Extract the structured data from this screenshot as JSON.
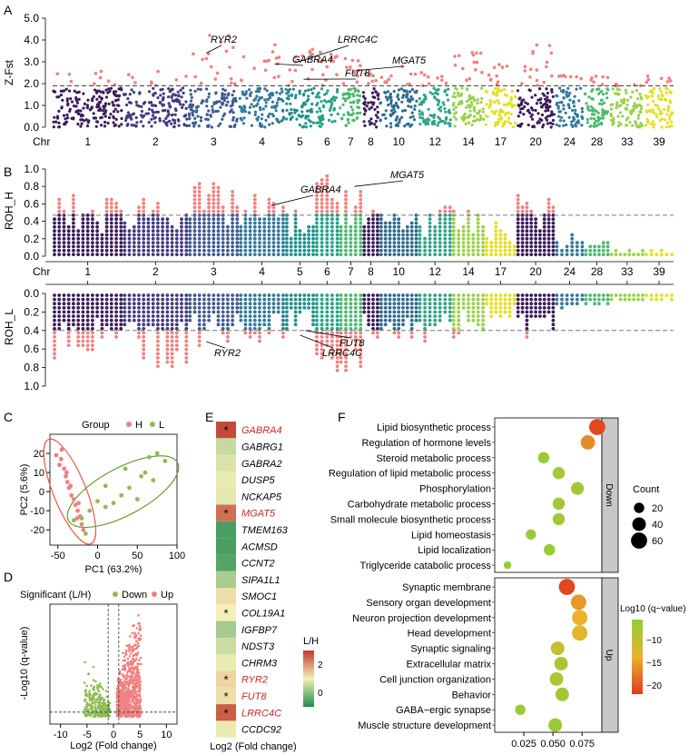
{
  "panel_labels": [
    "A",
    "B",
    "C",
    "D",
    "E",
    "F"
  ],
  "chart_data": [
    {
      "panel": "A",
      "type": "scatter",
      "title": "",
      "ylabel": "Z-Fst",
      "xlabel": "Chr",
      "ylim": [
        0,
        5.0
      ],
      "yticks": [
        "0.0",
        "1.0",
        "2.0",
        "3.0",
        "4.0",
        "5.0"
      ],
      "threshold": 1.9,
      "chromosome_labels": [
        "1",
        "2",
        "3",
        "4",
        "5",
        "6",
        "7",
        "8",
        "10",
        "12",
        "14",
        "17",
        "20",
        "24",
        "28",
        "33",
        "39"
      ],
      "chromosome_peak_values": [
        2.8,
        2.7,
        4.3,
        3.8,
        3.6,
        3.5,
        3.2,
        2.5,
        3.0,
        2.7,
        3.5,
        2.9,
        4.1,
        2.4,
        2.4,
        2.0,
        2.4
      ],
      "gene_annotations": [
        {
          "gene": "RYR2",
          "value": 3.4
        },
        {
          "gene": "GABRA4",
          "value": 2.9
        },
        {
          "gene": "LRRC4C",
          "value": 3.0
        },
        {
          "gene": "FUT8",
          "value": 2.2
        },
        {
          "gene": "MGAT5",
          "value": 2.6
        }
      ]
    },
    {
      "panel": "B-top",
      "type": "scatter",
      "ylabel": "ROH_H",
      "xlabel": "Chr",
      "ylim": [
        0,
        1.0
      ],
      "yticks": [
        "0.0",
        "0.2",
        "0.4",
        "0.6",
        "0.8",
        "1.0"
      ],
      "threshold": 0.47,
      "chromosome_labels": [
        "1",
        "2",
        "3",
        "4",
        "5",
        "6",
        "7",
        "8",
        "10",
        "12",
        "14",
        "17",
        "20",
        "24",
        "28",
        "33",
        "39"
      ],
      "chromosome_peak_values": [
        0.72,
        0.8,
        0.86,
        0.72,
        0.55,
        0.98,
        0.95,
        0.58,
        0.62,
        0.6,
        0.55,
        0.4,
        0.75,
        0.25,
        0.2,
        0.08,
        0.1
      ],
      "gene_annotations": [
        {
          "gene": "GABRA4",
          "value": 0.58
        },
        {
          "gene": "MGAT5",
          "value": 0.8
        }
      ]
    },
    {
      "panel": "B-bottom",
      "type": "scatter",
      "ylabel": "ROH_L",
      "ylim": [
        0,
        1.0
      ],
      "yticks": [
        "0.0",
        "0.2",
        "0.4",
        "0.6",
        "0.8",
        "1.0"
      ],
      "threshold": 0.4,
      "chromosome_peak_values": [
        0.72,
        0.82,
        0.58,
        0.55,
        0.42,
        0.95,
        0.86,
        0.62,
        0.58,
        0.56,
        0.5,
        0.3,
        0.55,
        0.2,
        0.15,
        0.1,
        0.1
      ],
      "gene_annotations": [
        {
          "gene": "RYR2",
          "value": 0.52
        },
        {
          "gene": "LRRC4C",
          "value": 0.45
        },
        {
          "gene": "FUT8",
          "value": 0.4
        }
      ]
    },
    {
      "panel": "C",
      "type": "scatter",
      "legend_title": "Group",
      "series": [
        {
          "name": "H",
          "color": "#f08080",
          "points": [
            [
              -52,
              19
            ],
            [
              -48,
              14
            ],
            [
              -45,
              22
            ],
            [
              -42,
              12
            ],
            [
              -40,
              8
            ],
            [
              -38,
              5
            ],
            [
              -36,
              2
            ],
            [
              -34,
              3
            ],
            [
              -33,
              -2
            ],
            [
              -30,
              -4
            ],
            [
              -28,
              -7
            ],
            [
              -25,
              -10
            ],
            [
              -22,
              -13
            ],
            [
              -20,
              -17
            ],
            [
              -46,
              17
            ],
            [
              -39,
              10
            ],
            [
              -26,
              -14
            ],
            [
              -18,
              -20
            ],
            [
              -24,
              -6
            ]
          ]
        },
        {
          "name": "L",
          "color": "#8fbc55",
          "points": [
            [
              -30,
              -15
            ],
            [
              -20,
              -14
            ],
            [
              -10,
              -10
            ],
            [
              0,
              -5
            ],
            [
              10,
              -8
            ],
            [
              20,
              -6
            ],
            [
              30,
              -2
            ],
            [
              40,
              2
            ],
            [
              50,
              -4
            ],
            [
              55,
              8
            ],
            [
              60,
              10
            ],
            [
              65,
              18
            ],
            [
              75,
              20
            ],
            [
              85,
              16
            ],
            [
              -15,
              -22
            ],
            [
              10,
              3
            ],
            [
              35,
              12
            ],
            [
              70,
              6
            ]
          ]
        }
      ],
      "xlabel": "PC1 (63.2%)",
      "ylabel": "PC2 (5.6%)",
      "xlim": [
        -60,
        100
      ],
      "ylim": [
        -28,
        30
      ],
      "xticks": [
        -50,
        0,
        50,
        100
      ],
      "yticks": [
        20,
        10,
        0,
        -10,
        -20
      ]
    },
    {
      "panel": "D",
      "type": "scatter",
      "legend_title": "Significant (L/H)",
      "series": [
        {
          "name": "Down",
          "color": "#8fbc55",
          "x_range": [
            -5.5,
            -0.6
          ],
          "y_max": 6
        },
        {
          "name": "Up",
          "color": "#f08080",
          "x_range": [
            0.6,
            5.2
          ],
          "y_max": 12
        }
      ],
      "xlabel": "Log2 (Fold change)",
      "ylabel": "-Log10 (q-value)",
      "xlim": [
        -12,
        12
      ],
      "ylim": [
        0,
        13
      ],
      "xticks": [
        -10,
        -5,
        0,
        5,
        10
      ]
    },
    {
      "panel": "E",
      "type": "heatmap",
      "genes": [
        "GABRA4",
        "GABRG1",
        "GABRA2",
        "DUSP5",
        "NCKAP5",
        "MGAT5",
        "TMEM163",
        "ACMSD",
        "CCNT2",
        "SIPA1L1",
        "SMOC1",
        "COL19A1",
        "IGFBP7",
        "NDST3",
        "CHRM3",
        "RYR2",
        "FUT8",
        "LRRC4C",
        "CCDC92"
      ],
      "values": [
        2.8,
        0.55,
        0.75,
        0.9,
        0.85,
        2.4,
        -0.6,
        -0.6,
        -0.5,
        0.3,
        1.2,
        1.0,
        0.25,
        0.6,
        0.9,
        1.3,
        1.2,
        2.6,
        0.9
      ],
      "highlighted": [
        true,
        false,
        false,
        false,
        false,
        true,
        false,
        false,
        false,
        false,
        false,
        false,
        false,
        false,
        false,
        true,
        true,
        true,
        false
      ],
      "starred": [
        true,
        false,
        false,
        false,
        false,
        true,
        false,
        false,
        false,
        false,
        false,
        true,
        false,
        false,
        false,
        true,
        true,
        true,
        false
      ],
      "legend_title": "L/H",
      "legend_ticks": [
        "2",
        "0"
      ],
      "legend_range": [
        -1,
        3
      ],
      "xlabel": "Log2 (Fold change)"
    },
    {
      "panel": "F",
      "type": "scatter",
      "facets": [
        {
          "name": "Down",
          "terms": [
            {
              "term": "Lipid biosynthetic process",
              "x": 0.088,
              "count": 60,
              "log10q": -22
            },
            {
              "term": "Regulation of hormone levels",
              "x": 0.08,
              "count": 45,
              "log10q": -17
            },
            {
              "term": "Steroid metabolic process",
              "x": 0.042,
              "count": 25,
              "log10q": -6
            },
            {
              "term": "Regulation of lipid metabolic process",
              "x": 0.055,
              "count": 30,
              "log10q": -7
            },
            {
              "term": "Phosphorylation",
              "x": 0.071,
              "count": 35,
              "log10q": -7
            },
            {
              "term": "Carbohydrate metabolic process",
              "x": 0.055,
              "count": 30,
              "log10q": -7
            },
            {
              "term": "Small molecule biosynthetic process",
              "x": 0.055,
              "count": 30,
              "log10q": -7
            },
            {
              "term": "Lipid homeostasis",
              "x": 0.031,
              "count": 20,
              "log10q": -6
            },
            {
              "term": "Lipid localization",
              "x": 0.047,
              "count": 25,
              "log10q": -6
            },
            {
              "term": "Triglyceride catabolic process",
              "x": 0.011,
              "count": 8,
              "log10q": -5
            }
          ]
        },
        {
          "name": "Up",
          "terms": [
            {
              "term": "Synaptic membrane",
              "x": 0.062,
              "count": 60,
              "log10q": -22
            },
            {
              "term": "Sensory organ development",
              "x": 0.072,
              "count": 55,
              "log10q": -16
            },
            {
              "term": "Neuron projection development",
              "x": 0.073,
              "count": 55,
              "log10q": -14
            },
            {
              "term": "Head development",
              "x": 0.073,
              "count": 55,
              "log10q": -13
            },
            {
              "term": "Synaptic signaling",
              "x": 0.054,
              "count": 40,
              "log10q": -10
            },
            {
              "term": "Extracellular matrix",
              "x": 0.057,
              "count": 40,
              "log10q": -8
            },
            {
              "term": "Cell junction organization",
              "x": 0.053,
              "count": 40,
              "log10q": -8
            },
            {
              "term": "Behavior",
              "x": 0.058,
              "count": 40,
              "log10q": -7
            },
            {
              "term": "GABA−ergic synapse",
              "x": 0.022,
              "count": 20,
              "log10q": -6
            },
            {
              "term": "Muscle structure development",
              "x": 0.052,
              "count": 40,
              "log10q": -6
            }
          ]
        }
      ],
      "xlim": [
        0.0,
        0.092
      ],
      "xticks": [
        "0.025",
        "0.050",
        "0.075"
      ],
      "size_legend_title": "Count",
      "size_legend": [
        20,
        40,
        60
      ],
      "color_legend_title": "Log10 (q−value)",
      "color_legend_ticks": [
        "−10",
        "−15",
        "−20"
      ],
      "color_range": [
        -23,
        -5
      ]
    }
  ],
  "colors": {
    "sig": "#f08080",
    "chrom": [
      "#3b1c5a",
      "#413b7f",
      "#3f5a91",
      "#33789a",
      "#208f8c",
      "#20a486",
      "#4cb96e",
      "#3b1c5a",
      "#2f6b8e",
      "#2fa485",
      "#9ad14a",
      "#e4df1d",
      "#3b1c5a",
      "#33789a",
      "#4cb96e",
      "#9ad14a",
      "#e4df1d"
    ]
  }
}
